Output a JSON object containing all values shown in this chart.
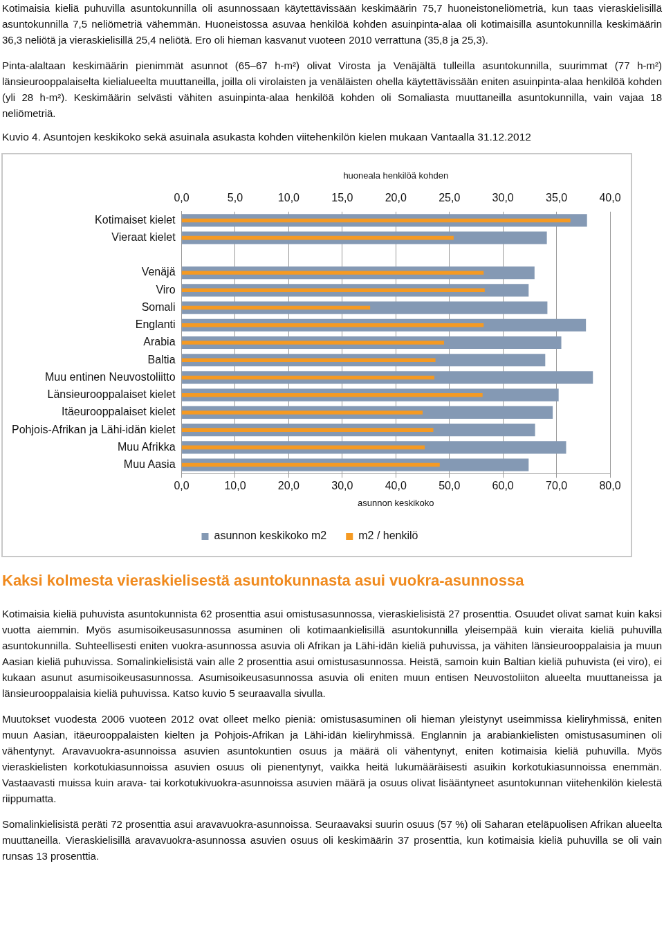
{
  "chart_data": {
    "type": "bar",
    "orientation": "horizontal",
    "title": "Kuvio 4. Asuntojen keskikoko sekä asuinala asukasta kohden viitehenkilön kielen mukaan Vantaalla 31.12.2012",
    "xlabel": "asunnon keskikoko",
    "x2label": "huoneala henkilöä kohden",
    "categories": [
      "Kotimaiset kielet",
      "Vieraat kielet",
      null,
      "Venäjä",
      "Viro",
      "Somali",
      "Englanti",
      "Arabia",
      "Baltia",
      "Muu entinen Neuvostoliitto",
      "Länsieurooppalaiset kielet",
      "Itäeurooppalaiset kielet",
      "Pohjois-Afrikan ja Lähi-idän kielet",
      "Muu Afrikka",
      "Muu Aasia"
    ],
    "series": [
      {
        "name": "asunnon keskikoko m2",
        "color": "#8499b4",
        "values": [
          75.7,
          68.2,
          null,
          65.9,
          64.8,
          68.3,
          75.5,
          70.9,
          67.9,
          76.8,
          70.4,
          69.3,
          66.0,
          71.8,
          64.8
        ]
      },
      {
        "name": "m2 / henkilö",
        "color": "#f59a23",
        "axis": "x2",
        "values": [
          36.3,
          25.4,
          null,
          28.2,
          28.3,
          17.6,
          28.2,
          24.5,
          23.7,
          23.6,
          28.1,
          22.5,
          23.5,
          22.7,
          24.1
        ]
      }
    ],
    "xlim": [
      0,
      80
    ],
    "xticks": [
      {
        "value": 0,
        "label": "0,0"
      },
      {
        "value": 10,
        "label": "10,0"
      },
      {
        "value": 20,
        "label": "20,0"
      },
      {
        "value": 30,
        "label": "30,0"
      },
      {
        "value": 40,
        "label": "40,0"
      },
      {
        "value": 50,
        "label": "50,0"
      },
      {
        "value": 60,
        "label": "60,0"
      },
      {
        "value": 70,
        "label": "70,0"
      },
      {
        "value": 80,
        "label": "80,0"
      }
    ],
    "x2lim": [
      0,
      40
    ],
    "x2ticks": [
      {
        "value": 0,
        "label": "0,0"
      },
      {
        "value": 5,
        "label": "5,0"
      },
      {
        "value": 10,
        "label": "10,0"
      },
      {
        "value": 15,
        "label": "15,0"
      },
      {
        "value": 20,
        "label": "20,0"
      },
      {
        "value": 25,
        "label": "25,0"
      },
      {
        "value": 30,
        "label": "30,0"
      },
      {
        "value": 35,
        "label": "35,0"
      },
      {
        "value": 40,
        "label": "40,0"
      }
    ],
    "grid": "x",
    "legend": "bottom",
    "annotations": [
      "Kotimaisia kieliä puhuvilla asuntokunnilla oli asunnossaan käytettävissään keskimäärin 75,7 huoneistoneliömetriä, kun taas vieraskielisillä asuntokunnilla 7,5 neliömetriä vähemmän. Huoneistossa asuvaa henkilöä kohden asuinpinta-alaa oli kotimaisilla asuntokunnilla keskimäärin 36,3 neliötä ja vieraskielisillä 25,4 neliötä. Ero oli hieman kasvanut vuoteen 2010 verrattuna (35,8 ja 25,3).",
      "Pinta-alaltaan keskimäärin pienimmät asunnot (65–67 h-m²) olivat Virosta ja Venäjältä tulleilla asuntokunnilla, suurimmat (77 h-m²) länsieurooppalaiselta kielialueelta muuttaneilla, joilla oli virolaisten ja venäläisten ohella käytettävissään eniten asuinpinta-alaa henkilöä kohden (yli 28 h-m²). Keskimäärin selvästi vähiten asuinpinta-alaa henkilöä kohden oli Somaliasta muuttaneilla asuntokunnilla, vain vajaa 18 neliömetriä.",
      "Kaksi kolmesta vieraskielisestä asuntokunnasta asui vuokra-asunnossa",
      "Kotimaisia kieliä puhuvista asuntokunnista 62 prosenttia asui omistusasunnossa, vieraskielisistä 27 prosenttia. Osuudet olivat samat kuin kaksi vuotta aiemmin. Myös asumisoikeusasunnossa asuminen oli kotimaankielisillä asuntokunnilla yleisempää kuin vieraita kieliä puhuvilla asuntokunnilla. Suhteellisesti eniten vuokra-asunnossa asuvia oli Afrikan ja Lähi-idän kieliä puhuvissa, ja vähiten länsieurooppalaisia ja muun Aasian kieliä puhuvissa. Somalinkielisistä vain alle 2 prosenttia asui omistusasunnossa. Heistä, samoin kuin Baltian kieliä puhuvista (ei viro), ei kukaan asunut asumisoikeusasunnossa. Asumisoikeusasunnossa asuvia oli eniten muun entisen Neuvostoliiton alueelta muuttaneissa ja länsieurooppalaisia kieliä puhuvissa. Katso kuvio 5 seuraavalla sivulla.",
      "Muutokset vuodesta 2006 vuoteen 2012 ovat olleet melko pieniä: omistusasuminen oli hieman yleistynyt useimmissa kieliryhmissä, eniten muun Aasian, itäeurooppalaisten kielten ja Pohjois-Afrikan ja Lähi-idän kieliryhmissä. Englannin ja arabiankielisten omistusasuminen oli vähentynyt. Aravavuokra-asunnoissa asuvien asuntokuntien osuus ja määrä oli vähentynyt, eniten kotimaisia kieliä puhuvilla. Myös vieraskielisten korkotukiasunnoissa asuvien osuus oli pienentynyt, vaikka heitä lukumääräisesti asuikin korkotukiasunnoissa enemmän. Vastaavasti muissa kuin arava- tai korkotukivuokra-asunnoissa asuvien määrä ja osuus olivat lisääntyneet asuntokunnan viitehenkilön kielestä riippumatta.",
      "Somalinkielisistä peräti 72 prosenttia asui aravavuokra-asunnoissa. Seuraavaksi suurin osuus (57 %) oli Saharan eteläpuolisen Afrikan alueelta muuttaneilla. Vieraskielisillä aravavuokra-asunnossa asuvien osuus oli keskimäärin 37 prosenttia, kun kotimaisia kieliä puhuvilla se oli vain runsas 13 prosenttia."
    ]
  }
}
